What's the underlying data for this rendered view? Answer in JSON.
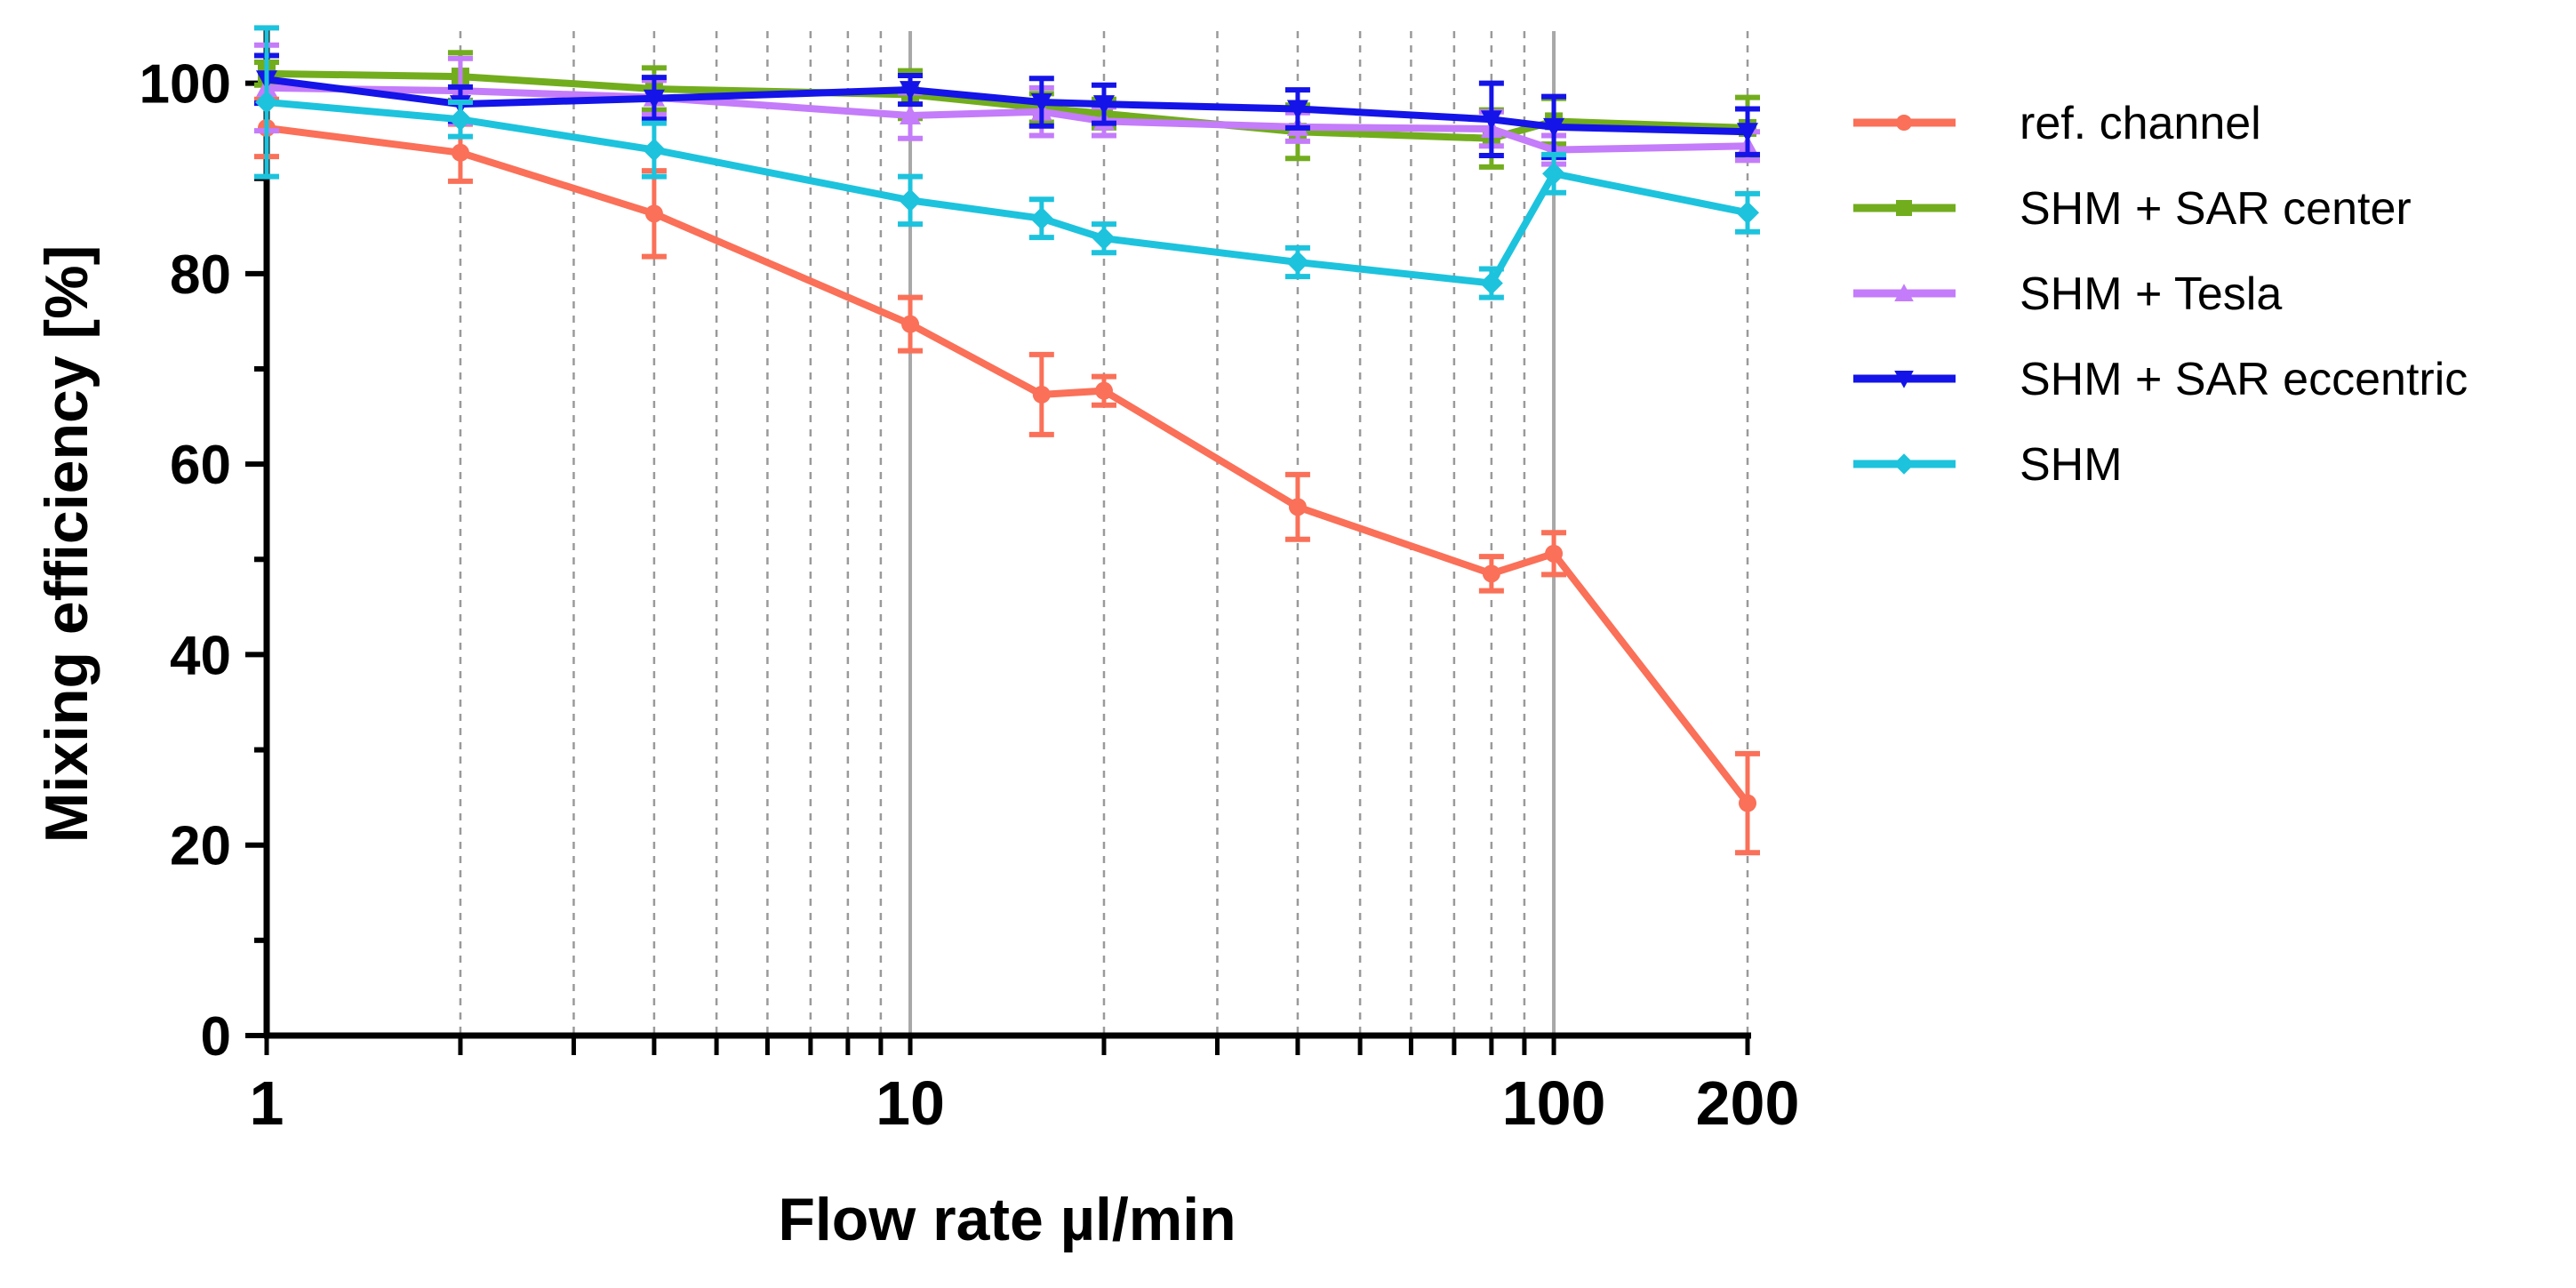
{
  "chart_data": {
    "type": "line",
    "title": "",
    "xlabel": "Flow rate µl/min",
    "ylabel": "Mixing efficiency [%]",
    "xscale": "log",
    "xlim": [
      1,
      200
    ],
    "ylim": [
      0,
      105
    ],
    "xticks": [
      1,
      10,
      100,
      200
    ],
    "xtick_labels": [
      "1",
      "10",
      "100",
      "200"
    ],
    "yticks": [
      0,
      20,
      40,
      60,
      80,
      100
    ],
    "ytick_labels": [
      "0",
      "20",
      "40",
      "60",
      "80",
      "100"
    ],
    "vertical_gridlines": [
      2,
      3,
      4,
      5,
      6,
      7,
      8,
      9,
      20,
      30,
      40,
      50,
      60,
      70,
      80,
      90,
      200
    ],
    "major_vertical_gridlines": [
      10,
      100
    ],
    "legend_position": "right",
    "x": [
      1,
      2,
      4,
      10,
      16,
      20,
      40,
      80,
      100,
      200
    ],
    "series": [
      {
        "name": "ref. channel",
        "color": "#fa7058",
        "marker": "circle",
        "values": [
          95.3,
          92.7,
          86.3,
          74.7,
          67.3,
          67.7,
          55.5,
          48.5,
          50.6,
          24.4
        ],
        "errors": [
          3,
          3,
          4.5,
          2.8,
          4.2,
          1.5,
          3.4,
          1.8,
          2.2,
          5.2
        ]
      },
      {
        "name": "SHM + SAR center",
        "color": "#72ad1e",
        "marker": "square",
        "values": [
          101.0,
          100.7,
          99.4,
          98.8,
          97.4,
          96.8,
          94.9,
          94.2,
          96.0,
          95.3
        ],
        "errors": [
          1.2,
          2.5,
          2.2,
          2.5,
          1.5,
          1.5,
          2.8,
          3.0,
          2.4,
          3.2
        ]
      },
      {
        "name": "SHM + Tesla",
        "color": "#c47cfa",
        "marker": "triangle-up",
        "values": [
          99.5,
          99.2,
          98.5,
          96.6,
          97.0,
          96.0,
          95.4,
          95.2,
          93.0,
          93.4
        ],
        "errors": [
          4.5,
          3.4,
          1.8,
          2.4,
          2.5,
          1.5,
          1.5,
          1.8,
          1.5,
          1.5
        ]
      },
      {
        "name": "SHM + SAR eccentric",
        "color": "#1414e8",
        "marker": "triangle-down",
        "values": [
          100.4,
          97.8,
          98.4,
          99.3,
          98.0,
          97.8,
          97.3,
          96.2,
          95.4,
          94.9
        ],
        "errors": [
          2.5,
          1.8,
          2.2,
          1.5,
          2.5,
          2.0,
          2.0,
          3.8,
          3.2,
          2.4
        ]
      },
      {
        "name": "SHM",
        "color": "#1dc3dd",
        "marker": "diamond",
        "values": [
          98.0,
          96.2,
          93.0,
          87.7,
          85.8,
          83.7,
          81.2,
          79.0,
          90.5,
          86.4
        ],
        "errors": [
          7.8,
          1.8,
          2.8,
          2.5,
          2.0,
          1.5,
          1.5,
          1.5,
          2.0,
          2.0
        ]
      }
    ]
  }
}
